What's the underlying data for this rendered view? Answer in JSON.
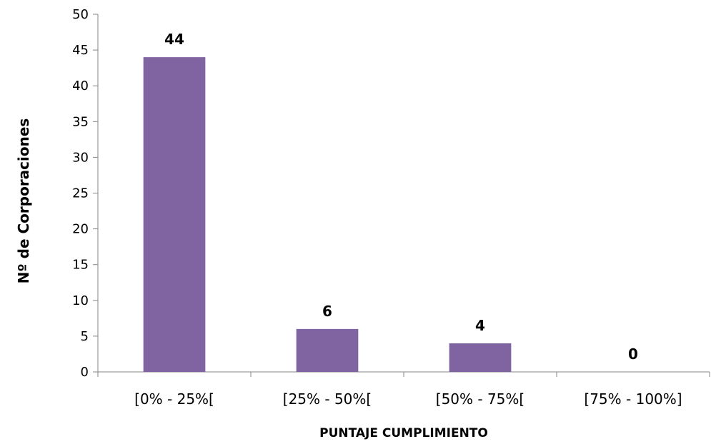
{
  "chart_data": {
    "type": "bar",
    "categories": [
      "[0% - 25%[",
      "[25% - 50%[",
      "[50% - 75%[",
      "[75% - 100%]"
    ],
    "values": [
      44,
      6,
      4,
      0
    ],
    "data_labels": [
      "44",
      "6",
      "4",
      "0"
    ],
    "title": "",
    "xlabel": "PUNTAJE CUMPLIMIENTO",
    "ylabel": "Nº  de Corporaciones",
    "ylim": [
      0,
      50
    ],
    "yticks": [
      0,
      5,
      10,
      15,
      20,
      25,
      30,
      35,
      40,
      45,
      50
    ],
    "grid": false,
    "legend": "none",
    "bar_color": "#8064A2"
  }
}
